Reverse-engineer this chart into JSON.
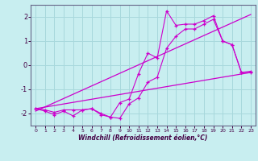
{
  "title": "",
  "xlabel": "Windchill (Refroidissement éolien,°C)",
  "ylabel": "",
  "bg_color": "#c8eef0",
  "grid_color": "#a8d8dc",
  "line_color": "#cc00cc",
  "axis_color": "#666688",
  "xlim": [
    -0.5,
    23.5
  ],
  "ylim": [
    -2.5,
    2.5
  ],
  "xticks": [
    0,
    1,
    2,
    3,
    4,
    5,
    6,
    7,
    8,
    9,
    10,
    11,
    12,
    13,
    14,
    15,
    16,
    17,
    18,
    19,
    20,
    21,
    22,
    23
  ],
  "yticks": [
    -2,
    -1,
    0,
    1,
    2
  ],
  "lines": [
    {
      "x": [
        0,
        23
      ],
      "y": [
        -1.8,
        -0.3
      ]
    },
    {
      "x": [
        0,
        23
      ],
      "y": [
        -1.9,
        2.1
      ]
    },
    {
      "x": [
        0,
        1,
        2,
        3,
        4,
        5,
        6,
        7,
        8,
        9,
        10,
        11,
        12,
        13,
        14,
        15,
        16,
        17,
        18,
        19,
        20,
        21,
        22,
        23
      ],
      "y": [
        -1.8,
        -1.9,
        -2.05,
        -1.9,
        -2.1,
        -1.85,
        -1.8,
        -2.0,
        -2.15,
        -1.55,
        -1.4,
        -0.35,
        0.5,
        0.3,
        2.25,
        1.65,
        1.7,
        1.7,
        1.85,
        2.05,
        1.0,
        0.85,
        -0.3,
        -0.3
      ]
    },
    {
      "x": [
        0,
        1,
        2,
        3,
        4,
        5,
        6,
        7,
        8,
        9,
        10,
        11,
        12,
        13,
        14,
        15,
        16,
        17,
        18,
        19,
        20,
        21,
        22,
        23
      ],
      "y": [
        -1.8,
        -1.85,
        -1.95,
        -1.85,
        -1.85,
        -1.85,
        -1.8,
        -2.05,
        -2.15,
        -2.2,
        -1.6,
        -1.35,
        -0.7,
        -0.5,
        0.7,
        1.2,
        1.5,
        1.5,
        1.7,
        1.9,
        1.0,
        0.85,
        -0.3,
        -0.25
      ]
    }
  ]
}
